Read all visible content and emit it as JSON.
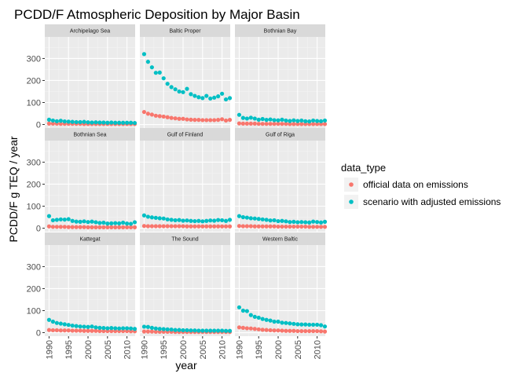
{
  "chart_data": {
    "type": "scatter",
    "title": "PCDD/F Atmospheric Deposition by Major Basin",
    "xlabel": "year",
    "ylabel": "PCDD/F g TEQ / year",
    "xlim": [
      1988.9,
      2012.1
    ],
    "ylim": [
      -16,
      398
    ],
    "x_ticks": [
      1990,
      1995,
      2000,
      2005,
      2010
    ],
    "y_ticks": [
      0,
      100,
      200,
      300
    ],
    "grid": true,
    "legend": {
      "title": "data_type",
      "placement": "right",
      "entries": [
        {
          "name": "official data on emissions",
          "color": "#F8766D"
        },
        {
          "name": "scenario with adjusted emissions",
          "color": "#00BFC4"
        }
      ]
    },
    "facets": [
      {
        "name": "Archipelago Sea",
        "series": [
          {
            "name": "official data on emissions",
            "x": [
              1990,
              1991,
              1992,
              1993,
              1994,
              1995,
              1996,
              1997,
              1998,
              1999,
              2000,
              2001,
              2002,
              2003,
              2004,
              2005,
              2006,
              2007,
              2008,
              2009,
              2010,
              2011,
              2012
            ],
            "y": [
              4,
              4,
              4,
              3,
              3,
              3,
              3,
              3,
              3,
              2,
              2,
              2,
              2,
              2,
              2,
              2,
              2,
              2,
              2,
              2,
              2,
              2,
              2
            ]
          },
          {
            "name": "scenario with adjusted emissions",
            "x": [
              1990,
              1991,
              1992,
              1993,
              1994,
              1995,
              1996,
              1997,
              1998,
              1999,
              2000,
              2001,
              2002,
              2003,
              2004,
              2005,
              2006,
              2007,
              2008,
              2009,
              2010,
              2011,
              2012
            ],
            "y": [
              22,
              18,
              15,
              17,
              14,
              13,
              12,
              11,
              11,
              12,
              10,
              9,
              10,
              9,
              9,
              8,
              9,
              8,
              8,
              8,
              8,
              8,
              7
            ]
          }
        ]
      },
      {
        "name": "Baltic Proper",
        "series": [
          {
            "name": "official data on emissions",
            "x": [
              1990,
              1991,
              1992,
              1993,
              1994,
              1995,
              1996,
              1997,
              1998,
              1999,
              2000,
              2001,
              2002,
              2003,
              2004,
              2005,
              2006,
              2007,
              2008,
              2009,
              2010,
              2011,
              2012
            ],
            "y": [
              57,
              49,
              45,
              40,
              38,
              36,
              33,
              30,
              28,
              26,
              26,
              23,
              22,
              21,
              21,
              20,
              20,
              20,
              20,
              21,
              24,
              18,
              21
            ]
          },
          {
            "name": "scenario with adjusted emissions",
            "x": [
              1990,
              1991,
              1992,
              1993,
              1994,
              1995,
              1996,
              1997,
              1998,
              1999,
              2000,
              2001,
              2002,
              2003,
              2004,
              2005,
              2006,
              2007,
              2008,
              2009,
              2010,
              2011,
              2012
            ],
            "y": [
              320,
              285,
              260,
              235,
              236,
              210,
              185,
              170,
              160,
              150,
              147,
              162,
              138,
              130,
              124,
              120,
              130,
              118,
              122,
              128,
              140,
              114,
              120
            ]
          }
        ]
      },
      {
        "name": "Bothnian Bay",
        "series": [
          {
            "name": "official data on emissions",
            "x": [
              1990,
              1991,
              1992,
              1993,
              1994,
              1995,
              1996,
              1997,
              1998,
              1999,
              2000,
              2001,
              2002,
              2003,
              2004,
              2005,
              2006,
              2007,
              2008,
              2009,
              2010,
              2011,
              2012
            ],
            "y": [
              5,
              4,
              4,
              4,
              4,
              3,
              3,
              3,
              3,
              3,
              3,
              3,
              3,
              2,
              2,
              2,
              2,
              2,
              2,
              2,
              2,
              2,
              2
            ]
          },
          {
            "name": "scenario with adjusted emissions",
            "x": [
              1990,
              1991,
              1992,
              1993,
              1994,
              1995,
              1996,
              1997,
              1998,
              1999,
              2000,
              2001,
              2002,
              2003,
              2004,
              2005,
              2006,
              2007,
              2008,
              2009,
              2010,
              2011,
              2012
            ],
            "y": [
              44,
              30,
              27,
              31,
              27,
              22,
              25,
              21,
              23,
              20,
              19,
              22,
              18,
              16,
              19,
              16,
              18,
              15,
              14,
              18,
              16,
              15,
              18
            ]
          }
        ]
      },
      {
        "name": "Bothnian Sea",
        "series": [
          {
            "name": "official data on emissions",
            "x": [
              1990,
              1991,
              1992,
              1993,
              1994,
              1995,
              1996,
              1997,
              1998,
              1999,
              2000,
              2001,
              2002,
              2003,
              2004,
              2005,
              2006,
              2007,
              2008,
              2009,
              2010,
              2011,
              2012
            ],
            "y": [
              8,
              6,
              6,
              6,
              6,
              5,
              5,
              5,
              5,
              5,
              4,
              4,
              4,
              4,
              4,
              4,
              4,
              4,
              4,
              4,
              4,
              4,
              4
            ]
          },
          {
            "name": "scenario with adjusted emissions",
            "x": [
              1990,
              1991,
              1992,
              1993,
              1994,
              1995,
              1996,
              1997,
              1998,
              1999,
              2000,
              2001,
              2002,
              2003,
              2004,
              2005,
              2006,
              2007,
              2008,
              2009,
              2010,
              2011,
              2012
            ],
            "y": [
              55,
              36,
              38,
              40,
              39,
              41,
              33,
              30,
              29,
              31,
              28,
              30,
              27,
              24,
              25,
              21,
              22,
              23,
              22,
              25,
              21,
              20,
              27
            ]
          }
        ]
      },
      {
        "name": "Gulf of Finland",
        "series": [
          {
            "name": "official data on emissions",
            "x": [
              1990,
              1991,
              1992,
              1993,
              1994,
              1995,
              1996,
              1997,
              1998,
              1999,
              2000,
              2001,
              2002,
              2003,
              2004,
              2005,
              2006,
              2007,
              2008,
              2009,
              2010,
              2011,
              2012
            ],
            "y": [
              10,
              9,
              9,
              9,
              9,
              9,
              9,
              9,
              9,
              9,
              9,
              8,
              8,
              8,
              8,
              8,
              8,
              8,
              8,
              8,
              8,
              8,
              8
            ]
          },
          {
            "name": "scenario with adjusted emissions",
            "x": [
              1990,
              1991,
              1992,
              1993,
              1994,
              1995,
              1996,
              1997,
              1998,
              1999,
              2000,
              2001,
              2002,
              2003,
              2004,
              2005,
              2006,
              2007,
              2008,
              2009,
              2010,
              2011,
              2012
            ],
            "y": [
              58,
              52,
              49,
              47,
              45,
              44,
              40,
              38,
              36,
              37,
              34,
              35,
              33,
              32,
              33,
              31,
              33,
              35,
              34,
              37,
              36,
              33,
              38
            ]
          }
        ]
      },
      {
        "name": "Gulf of Riga",
        "series": [
          {
            "name": "official data on emissions",
            "x": [
              1990,
              1991,
              1992,
              1993,
              1994,
              1995,
              1996,
              1997,
              1998,
              1999,
              2000,
              2001,
              2002,
              2003,
              2004,
              2005,
              2006,
              2007,
              2008,
              2009,
              2010,
              2011,
              2012
            ],
            "y": [
              10,
              9,
              9,
              9,
              8,
              8,
              8,
              8,
              8,
              8,
              7,
              7,
              7,
              7,
              7,
              7,
              7,
              7,
              6,
              6,
              6,
              6,
              6
            ]
          },
          {
            "name": "scenario with adjusted emissions",
            "x": [
              1990,
              1991,
              1992,
              1993,
              1994,
              1995,
              1996,
              1997,
              1998,
              1999,
              2000,
              2001,
              2002,
              2003,
              2004,
              2005,
              2006,
              2007,
              2008,
              2009,
              2010,
              2011,
              2012
            ],
            "y": [
              55,
              50,
              48,
              45,
              44,
              42,
              40,
              38,
              35,
              36,
              32,
              33,
              31,
              28,
              29,
              27,
              28,
              27,
              26,
              30,
              28,
              26,
              29
            ]
          }
        ]
      },
      {
        "name": "Kattegat",
        "series": [
          {
            "name": "official data on emissions",
            "x": [
              1990,
              1991,
              1992,
              1993,
              1994,
              1995,
              1996,
              1997,
              1998,
              1999,
              2000,
              2001,
              2002,
              2003,
              2004,
              2005,
              2006,
              2007,
              2008,
              2009,
              2010,
              2011,
              2012
            ],
            "y": [
              12,
              11,
              11,
              10,
              10,
              10,
              9,
              9,
              9,
              8,
              8,
              8,
              8,
              7,
              7,
              7,
              7,
              7,
              7,
              7,
              7,
              6,
              6
            ]
          },
          {
            "name": "scenario with adjusted emissions",
            "x": [
              1990,
              1991,
              1992,
              1993,
              1994,
              1995,
              1996,
              1997,
              1998,
              1999,
              2000,
              2001,
              2002,
              2003,
              2004,
              2005,
              2006,
              2007,
              2008,
              2009,
              2010,
              2011,
              2012
            ],
            "y": [
              58,
              50,
              44,
              41,
              38,
              35,
              32,
              30,
              28,
              27,
              26,
              28,
              24,
              22,
              21,
              20,
              21,
              20,
              19,
              20,
              20,
              19,
              17
            ]
          }
        ]
      },
      {
        "name": "The Sound",
        "series": [
          {
            "name": "official data on emissions",
            "x": [
              1990,
              1991,
              1992,
              1993,
              1994,
              1995,
              1996,
              1997,
              1998,
              1999,
              2000,
              2001,
              2002,
              2003,
              2004,
              2005,
              2006,
              2007,
              2008,
              2009,
              2010,
              2011,
              2012
            ],
            "y": [
              5,
              5,
              5,
              4,
              4,
              4,
              4,
              4,
              3,
              3,
              3,
              3,
              3,
              3,
              3,
              3,
              3,
              3,
              3,
              3,
              3,
              3,
              3
            ]
          },
          {
            "name": "scenario with adjusted emissions",
            "x": [
              1990,
              1991,
              1992,
              1993,
              1994,
              1995,
              1996,
              1997,
              1998,
              1999,
              2000,
              2001,
              2002,
              2003,
              2004,
              2005,
              2006,
              2007,
              2008,
              2009,
              2010,
              2011,
              2012
            ],
            "y": [
              27,
              26,
              22,
              19,
              17,
              16,
              15,
              14,
              12,
              12,
              11,
              11,
              10,
              10,
              9,
              9,
              9,
              9,
              9,
              9,
              9,
              8,
              8
            ]
          }
        ]
      },
      {
        "name": "Western Baltic",
        "series": [
          {
            "name": "official data on emissions",
            "x": [
              1990,
              1991,
              1992,
              1993,
              1994,
              1995,
              1996,
              1997,
              1998,
              1999,
              2000,
              2001,
              2002,
              2003,
              2004,
              2005,
              2006,
              2007,
              2008,
              2009,
              2010,
              2011,
              2012
            ],
            "y": [
              24,
              22,
              20,
              19,
              17,
              15,
              13,
              12,
              11,
              10,
              10,
              9,
              8,
              8,
              8,
              7,
              7,
              7,
              7,
              7,
              7,
              6,
              5
            ]
          },
          {
            "name": "scenario with adjusted emissions",
            "x": [
              1990,
              1991,
              1992,
              1993,
              1994,
              1995,
              1996,
              1997,
              1998,
              1999,
              2000,
              2001,
              2002,
              2003,
              2004,
              2005,
              2006,
              2007,
              2008,
              2009,
              2010,
              2011,
              2012
            ],
            "y": [
              115,
              100,
              98,
              80,
              72,
              68,
              62,
              58,
              55,
              50,
              50,
              45,
              44,
              42,
              40,
              38,
              37,
              37,
              36,
              36,
              36,
              34,
              28
            ]
          }
        ]
      }
    ]
  }
}
